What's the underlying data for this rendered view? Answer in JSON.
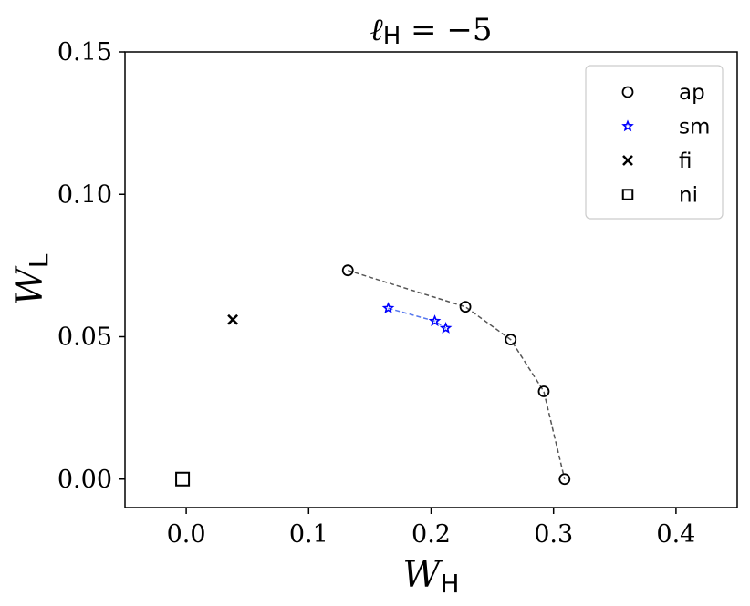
{
  "chart_data": {
    "type": "scatter",
    "title": "ℓH = −5",
    "title_parts": {
      "symbol": "ℓ",
      "sub": "H",
      "rest": " = −5"
    },
    "xlabel": {
      "symbol": "W",
      "sub": "H"
    },
    "ylabel": {
      "symbol": "W",
      "sub": "L"
    },
    "xlim": [
      -0.05,
      0.45
    ],
    "ylim": [
      -0.01,
      0.15
    ],
    "x_ticks": [
      0.0,
      0.1,
      0.2,
      0.3,
      0.4
    ],
    "x_tick_labels": [
      "0.0",
      "0.1",
      "0.2",
      "0.3",
      "0.4"
    ],
    "y_ticks": [
      0.0,
      0.05,
      0.1,
      0.15
    ],
    "y_tick_labels": [
      "0.00",
      "0.05",
      "0.10",
      "0.15"
    ],
    "grid": false,
    "legend_position": "top-right",
    "series": [
      {
        "name": "ap",
        "marker": "circle",
        "color": "#000000",
        "line": "dashed",
        "line_color": "#555555",
        "x": [
          0.132,
          0.228,
          0.265,
          0.292,
          0.309
        ],
        "y": [
          0.0733,
          0.0605,
          0.049,
          0.0308,
          0.0
        ]
      },
      {
        "name": "sm",
        "marker": "star",
        "color": "#0000ff",
        "line": "dashed",
        "line_color": "#5577ee",
        "x": [
          0.165,
          0.203,
          0.212
        ],
        "y": [
          0.06,
          0.0555,
          0.053
        ]
      },
      {
        "name": "fi",
        "marker": "x",
        "color": "#000000",
        "line": "none",
        "x": [
          0.038
        ],
        "y": [
          0.056
        ]
      },
      {
        "name": "ni",
        "marker": "square",
        "color": "#000000",
        "line": "none",
        "x": [
          -0.003
        ],
        "y": [
          0.0
        ]
      }
    ]
  }
}
